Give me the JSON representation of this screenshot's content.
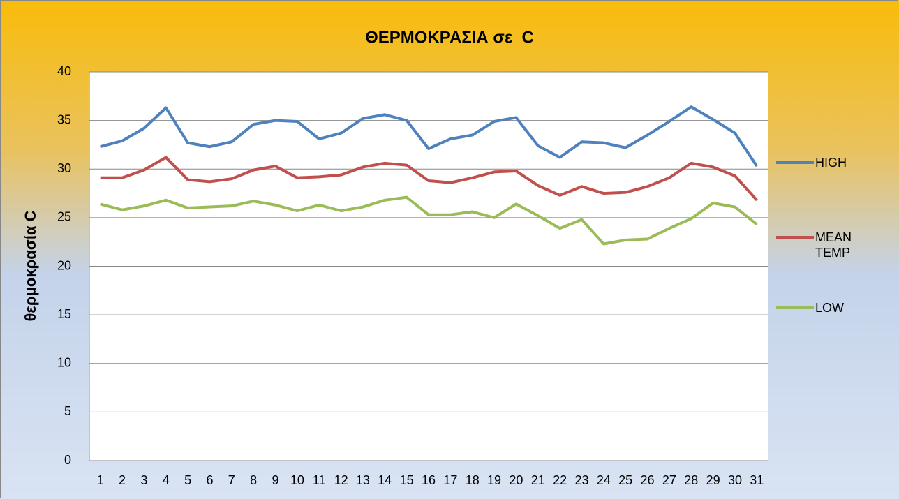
{
  "chart_data": {
    "type": "line",
    "title": "ΘΕΡΜΟΚΡΑΣΙΑ σε  C",
    "y_label": "θερμοκρασία C",
    "categories": [
      "1",
      "2",
      "3",
      "4",
      "5",
      "6",
      "7",
      "8",
      "9",
      "10",
      "11",
      "12",
      "13",
      "14",
      "15",
      "16",
      "17",
      "18",
      "19",
      "20",
      "21",
      "22",
      "23",
      "24",
      "25",
      "26",
      "27",
      "28",
      "29",
      "30",
      "31"
    ],
    "series": [
      {
        "name": "HIGH",
        "color": "#4f81bd",
        "values": [
          32.3,
          32.9,
          34.2,
          36.3,
          32.7,
          32.3,
          32.8,
          34.6,
          35.0,
          34.9,
          33.1,
          33.7,
          35.2,
          35.6,
          35.0,
          32.1,
          33.1,
          33.5,
          34.9,
          35.3,
          32.4,
          31.2,
          32.8,
          32.7,
          32.2,
          33.5,
          34.9,
          36.4,
          35.1,
          33.7,
          30.3
        ]
      },
      {
        "name": "MEAN TEMP",
        "color": "#c0504d",
        "values": [
          29.1,
          29.1,
          29.9,
          31.2,
          28.9,
          28.7,
          29.0,
          29.9,
          30.3,
          29.1,
          29.2,
          29.4,
          30.2,
          30.6,
          30.4,
          28.8,
          28.6,
          29.1,
          29.7,
          29.8,
          28.3,
          27.3,
          28.2,
          27.5,
          27.6,
          28.2,
          29.1,
          30.6,
          30.2,
          29.3,
          26.8
        ]
      },
      {
        "name": "LOW",
        "color": "#9bbb59",
        "values": [
          26.4,
          25.8,
          26.2,
          26.8,
          26.0,
          26.1,
          26.2,
          26.7,
          26.3,
          25.7,
          26.3,
          25.7,
          26.1,
          26.8,
          27.1,
          25.3,
          25.3,
          25.6,
          25.0,
          26.4,
          25.2,
          23.9,
          24.8,
          22.3,
          22.7,
          22.8,
          23.9,
          24.9,
          26.5,
          26.1,
          24.3
        ]
      }
    ],
    "ylim": [
      0,
      40
    ],
    "yticks": [
      0,
      5,
      10,
      15,
      20,
      25,
      30,
      35,
      40
    ],
    "grid": true,
    "legend": "right"
  }
}
